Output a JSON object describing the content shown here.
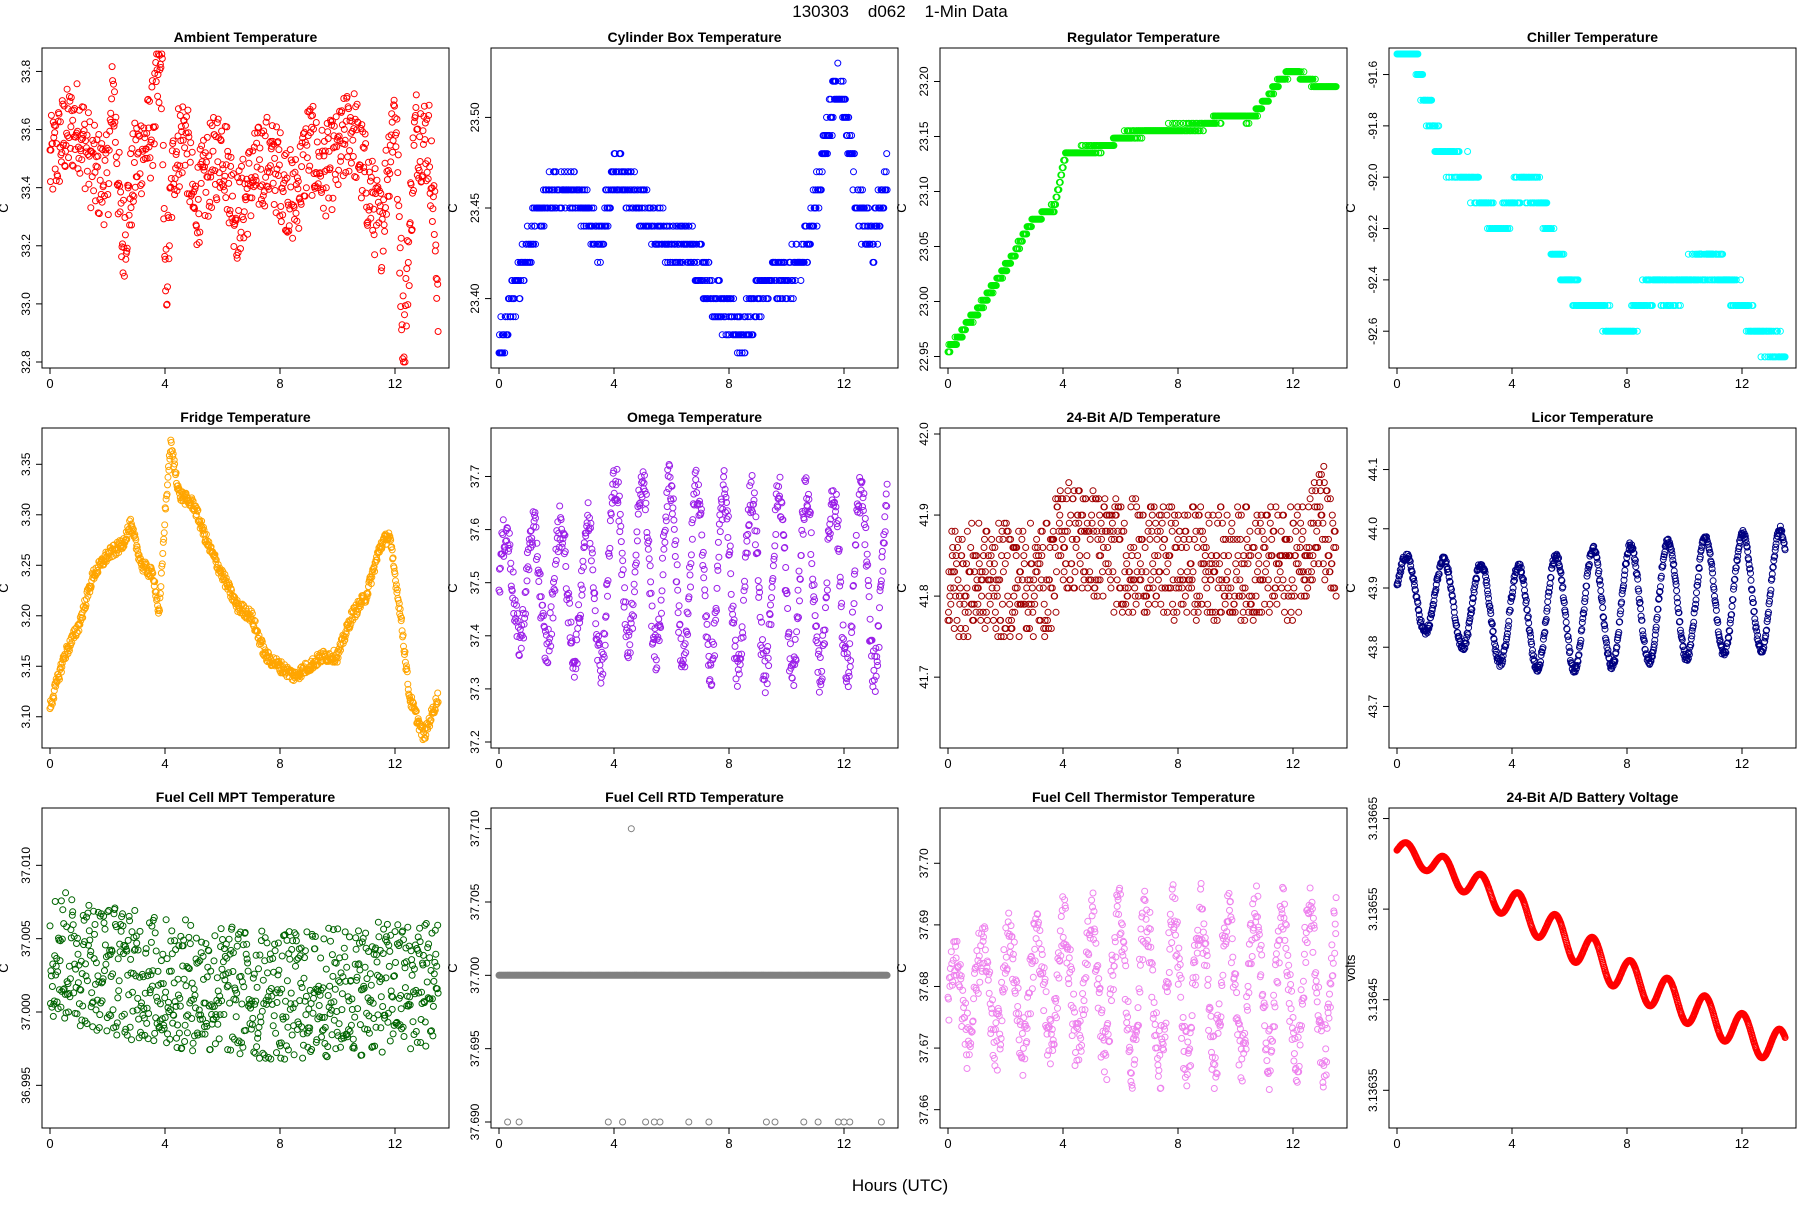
{
  "page": {
    "title": "130303    d062    1-Min Data",
    "xlabel": "Hours (UTC)"
  },
  "chart_data": [
    {
      "type": "scatter",
      "title": "Ambient Temperature",
      "ylabel": "C",
      "color": "#ff0000",
      "xlim": [
        0,
        13.6
      ],
      "xticks": [
        0,
        4,
        8,
        12
      ],
      "ylim": [
        32.8,
        33.86
      ],
      "yticks": [
        "32.8",
        "33.0",
        "33.2",
        "33.4",
        "33.6",
        "33.8"
      ],
      "pattern": "noisy",
      "points": [
        [
          0,
          33.48
        ],
        [
          0.5,
          33.58
        ],
        [
          1,
          33.62
        ],
        [
          1.5,
          33.46
        ],
        [
          2,
          33.42
        ],
        [
          2.2,
          33.75
        ],
        [
          2.5,
          33.2
        ],
        [
          3,
          33.5
        ],
        [
          3.5,
          33.58
        ],
        [
          3.9,
          33.82
        ],
        [
          4,
          33.0
        ],
        [
          4.3,
          33.5
        ],
        [
          4.7,
          33.6
        ],
        [
          5,
          33.32
        ],
        [
          5.5,
          33.45
        ],
        [
          6,
          33.55
        ],
        [
          6.5,
          33.3
        ],
        [
          7,
          33.42
        ],
        [
          7.5,
          33.5
        ],
        [
          8,
          33.45
        ],
        [
          8.5,
          33.35
        ],
        [
          9,
          33.55
        ],
        [
          9.5,
          33.45
        ],
        [
          10,
          33.5
        ],
        [
          10.5,
          33.62
        ],
        [
          11,
          33.42
        ],
        [
          11.5,
          33.25
        ],
        [
          12,
          33.7
        ],
        [
          12.3,
          32.85
        ],
        [
          12.7,
          33.6
        ],
        [
          13.2,
          33.55
        ],
        [
          13.5,
          33.05
        ]
      ],
      "noise": 0.16
    },
    {
      "type": "scatter",
      "title": "Cylinder Box Temperature",
      "ylabel": "C",
      "color": "#0000ff",
      "xlim": [
        0,
        13.6
      ],
      "xticks": [
        0,
        4,
        8,
        12
      ],
      "ylim": [
        23.365,
        23.535
      ],
      "yticks": [
        "23.40",
        "23.45",
        "23.50"
      ],
      "pattern": "steps",
      "step": 0.01,
      "points": [
        [
          0,
          23.37
        ],
        [
          0.5,
          23.4
        ],
        [
          1,
          23.43
        ],
        [
          1.5,
          23.45
        ],
        [
          2,
          23.46
        ],
        [
          2.5,
          23.46
        ],
        [
          3,
          23.45
        ],
        [
          3.5,
          23.43
        ],
        [
          4,
          23.47
        ],
        [
          4.5,
          23.46
        ],
        [
          5,
          23.45
        ],
        [
          5.5,
          23.44
        ],
        [
          6,
          23.43
        ],
        [
          6.5,
          23.43
        ],
        [
          7,
          23.42
        ],
        [
          7.5,
          23.4
        ],
        [
          8,
          23.39
        ],
        [
          8.5,
          23.38
        ],
        [
          9,
          23.4
        ],
        [
          9.5,
          23.41
        ],
        [
          10,
          23.41
        ],
        [
          10.5,
          23.42
        ],
        [
          11,
          23.45
        ],
        [
          11.5,
          23.5
        ],
        [
          11.8,
          23.52
        ],
        [
          12,
          23.51
        ],
        [
          12.5,
          23.45
        ],
        [
          13,
          23.43
        ],
        [
          13.5,
          23.47
        ]
      ],
      "noise": 0.012
    },
    {
      "type": "scatter",
      "title": "Regulator Temperature",
      "ylabel": "C",
      "color": "#00ee00",
      "xlim": [
        0,
        13.6
      ],
      "xticks": [
        0,
        4,
        8,
        12
      ],
      "ylim": [
        22.945,
        23.225
      ],
      "yticks": [
        "22.95",
        "23.00",
        "23.05",
        "23.10",
        "23.15",
        "23.20"
      ],
      "pattern": "steps",
      "step": 0.0067,
      "points": [
        [
          0,
          22.955
        ],
        [
          1,
          22.99
        ],
        [
          2,
          23.03
        ],
        [
          3,
          23.075
        ],
        [
          3.7,
          23.085
        ],
        [
          4.1,
          23.135
        ],
        [
          5.5,
          23.14
        ],
        [
          6,
          23.15
        ],
        [
          7,
          23.155
        ],
        [
          9,
          23.16
        ],
        [
          9.3,
          23.165
        ],
        [
          10,
          23.17
        ],
        [
          10.5,
          23.165
        ],
        [
          11,
          23.18
        ],
        [
          11.5,
          23.2
        ],
        [
          12,
          23.21
        ],
        [
          12.6,
          23.2
        ],
        [
          13,
          23.195
        ],
        [
          13.5,
          23.195
        ]
      ],
      "noise": 0.002
    },
    {
      "type": "scatter",
      "title": "Chiller Temperature",
      "ylabel": "C",
      "color": "#00ffff",
      "xlim": [
        0,
        13.6
      ],
      "xticks": [
        0,
        4,
        8,
        12
      ],
      "ylim": [
        -92.72,
        -91.52
      ],
      "yticks": [
        "-91.6",
        "-91.8",
        "-92.0",
        "-92.2",
        "-92.4",
        "-92.6"
      ],
      "pattern": "steps",
      "step": 0.1,
      "points": [
        [
          0,
          -91.5
        ],
        [
          0.6,
          -91.5
        ],
        [
          0.8,
          -91.6
        ],
        [
          1,
          -91.7
        ],
        [
          1.5,
          -91.9
        ],
        [
          2.5,
          -92.0
        ],
        [
          3,
          -92.1
        ],
        [
          3.5,
          -92.2
        ],
        [
          4,
          -92.1
        ],
        [
          4.5,
          -92.0
        ],
        [
          5,
          -92.1
        ],
        [
          5.5,
          -92.3
        ],
        [
          6,
          -92.4
        ],
        [
          6.5,
          -92.5
        ],
        [
          7,
          -92.5
        ],
        [
          7.5,
          -92.6
        ],
        [
          8,
          -92.6
        ],
        [
          8.5,
          -92.5
        ],
        [
          9,
          -92.4
        ],
        [
          9.5,
          -92.45
        ],
        [
          10,
          -92.4
        ],
        [
          10.5,
          -92.35
        ],
        [
          11,
          -92.35
        ],
        [
          11.5,
          -92.4
        ],
        [
          12,
          -92.5
        ],
        [
          12.5,
          -92.6
        ],
        [
          13,
          -92.65
        ],
        [
          13.5,
          -92.7
        ]
      ],
      "noise": 0.05
    },
    {
      "type": "scatter",
      "title": "Fridge Temperature",
      "ylabel": "C",
      "color": "#ffa500",
      "xlim": [
        0,
        13.6
      ],
      "xticks": [
        0,
        4,
        8,
        12
      ],
      "ylim": [
        3.075,
        3.38
      ],
      "yticks": [
        "3.10",
        "3.15",
        "3.20",
        "3.25",
        "3.30",
        "3.35"
      ],
      "pattern": "smooth",
      "points": [
        [
          0,
          3.11
        ],
        [
          0.5,
          3.16
        ],
        [
          1,
          3.19
        ],
        [
          1.5,
          3.24
        ],
        [
          2,
          3.26
        ],
        [
          2.5,
          3.27
        ],
        [
          2.8,
          3.29
        ],
        [
          3.2,
          3.25
        ],
        [
          3.6,
          3.24
        ],
        [
          3.8,
          3.2
        ],
        [
          4,
          3.3
        ],
        [
          4.2,
          3.37
        ],
        [
          4.5,
          3.32
        ],
        [
          5,
          3.31
        ],
        [
          5.5,
          3.27
        ],
        [
          6,
          3.24
        ],
        [
          6.5,
          3.21
        ],
        [
          7,
          3.2
        ],
        [
          7.5,
          3.16
        ],
        [
          8,
          3.15
        ],
        [
          8.5,
          3.14
        ],
        [
          9,
          3.15
        ],
        [
          9.5,
          3.16
        ],
        [
          10,
          3.16
        ],
        [
          10.5,
          3.2
        ],
        [
          11,
          3.22
        ],
        [
          11.5,
          3.27
        ],
        [
          11.8,
          3.28
        ],
        [
          12.2,
          3.2
        ],
        [
          12.5,
          3.12
        ],
        [
          13,
          3.08
        ],
        [
          13.5,
          3.12
        ]
      ],
      "noise": 0.006
    },
    {
      "type": "scatter",
      "title": "Omega Temperature",
      "ylabel": "C",
      "color": "#9a1ee8",
      "xlim": [
        0,
        13.6
      ],
      "xticks": [
        0,
        4,
        8,
        12
      ],
      "ylim": [
        37.2,
        37.78
      ],
      "yticks": [
        "37.2",
        "37.3",
        "37.4",
        "37.5",
        "37.6",
        "37.7"
      ],
      "pattern": "oscillate",
      "base": 37.5,
      "amp": 0.17,
      "period": 0.95,
      "points": [
        [
          0,
          37.5
        ],
        [
          3.5,
          37.48
        ],
        [
          4,
          37.55
        ],
        [
          8,
          37.5
        ],
        [
          13.5,
          37.5
        ]
      ],
      "noise": 0.04
    },
    {
      "type": "scatter",
      "title": "24-Bit A/D Temperature",
      "ylabel": "C",
      "color": "#a00000",
      "xlim": [
        0,
        13.6
      ],
      "xticks": [
        0,
        4,
        8,
        12
      ],
      "ylim": [
        41.62,
        42.0
      ],
      "yticks": [
        "41.7",
        "41.8",
        "41.9",
        "42.0"
      ],
      "pattern": "noisy",
      "step": 0.01,
      "points": [
        [
          0,
          41.82
        ],
        [
          3.5,
          41.82
        ],
        [
          4,
          41.88
        ],
        [
          6,
          41.85
        ],
        [
          8,
          41.84
        ],
        [
          12,
          41.84
        ],
        [
          13,
          41.9
        ],
        [
          13.5,
          41.82
        ]
      ],
      "noise": 0.07
    },
    {
      "type": "scatter",
      "title": "Licor Temperature",
      "ylabel": "C",
      "color": "#000080",
      "xlim": [
        0,
        13.6
      ],
      "xticks": [
        0,
        4,
        8,
        12
      ],
      "ylim": [
        43.64,
        44.16
      ],
      "yticks": [
        "43.7",
        "43.8",
        "43.9",
        "44.0",
        "44.1"
      ],
      "pattern": "oscillate",
      "base": 43.85,
      "amp": 0.1,
      "period": 1.3,
      "points": [
        [
          0,
          43.9
        ],
        [
          4,
          43.85
        ],
        [
          13.5,
          43.9
        ]
      ],
      "noise": 0.006
    },
    {
      "type": "scatter",
      "title": "Fuel Cell MPT Temperature",
      "ylabel": "C",
      "color": "#006400",
      "xlim": [
        0,
        13.6
      ],
      "xticks": [
        0,
        4,
        8,
        12
      ],
      "ylim": [
        36.9925,
        37.0135
      ],
      "yticks": [
        "36.995",
        "37.000",
        "37.005",
        "37.010"
      ],
      "pattern": "noisy",
      "points": [
        [
          0,
          37.004
        ],
        [
          4,
          37.002
        ],
        [
          8,
          37.001
        ],
        [
          13.5,
          37.002
        ]
      ],
      "noise": 0.0045
    },
    {
      "type": "scatter",
      "title": "Fuel Cell RTD Temperature",
      "ylabel": "C",
      "color": "#808080",
      "xlim": [
        0,
        13.6
      ],
      "xticks": [
        0,
        4,
        8,
        12
      ],
      "ylim": [
        37.69,
        37.711
      ],
      "yticks": [
        "37.690",
        "37.695",
        "37.700",
        "37.705",
        "37.710"
      ],
      "pattern": "flat",
      "points": [
        [
          0,
          37.7
        ],
        [
          13.5,
          37.7
        ]
      ],
      "outliers": [
        [
          0.3,
          37.69
        ],
        [
          0.7,
          37.69
        ],
        [
          3.8,
          37.69
        ],
        [
          4.3,
          37.69
        ],
        [
          4.6,
          37.71
        ],
        [
          5.1,
          37.69
        ],
        [
          5.4,
          37.69
        ],
        [
          5.6,
          37.69
        ],
        [
          6.6,
          37.69
        ],
        [
          7.3,
          37.69
        ],
        [
          9.3,
          37.69
        ],
        [
          9.6,
          37.69
        ],
        [
          10.6,
          37.69
        ],
        [
          11.1,
          37.69
        ],
        [
          11.8,
          37.69
        ],
        [
          12,
          37.69
        ],
        [
          12.2,
          37.69
        ],
        [
          13.3,
          37.69
        ]
      ]
    },
    {
      "type": "scatter",
      "title": "Fuel Cell Thermistor Temperature",
      "ylabel": "C",
      "color": "#ee82ee",
      "xlim": [
        0,
        13.6
      ],
      "xticks": [
        0,
        4,
        8,
        12
      ],
      "ylim": [
        37.658,
        37.708
      ],
      "yticks": [
        "37.66",
        "37.67",
        "37.68",
        "37.69",
        "37.70"
      ],
      "pattern": "oscillate",
      "base": 37.68,
      "amp": 0.012,
      "period": 0.95,
      "points": [
        [
          0,
          37.678
        ],
        [
          4,
          37.68
        ],
        [
          13.5,
          37.68
        ]
      ],
      "noise": 0.005
    },
    {
      "type": "scatter",
      "title": "24-Bit A/D Battery Voltage",
      "ylabel": "volts",
      "color": "#ff0000",
      "xlim": [
        0,
        13.6
      ],
      "xticks": [
        0,
        4,
        8,
        12
      ],
      "ylim": [
        3.136315,
        3.136655
      ],
      "yticks": [
        "3.13635",
        "3.13645",
        "3.13655",
        "3.13665"
      ],
      "pattern": "oscillate",
      "base": 0,
      "amp": 2e-05,
      "period": 1.3,
      "points": [
        [
          0,
          3.136615
        ],
        [
          1,
          3.136605
        ],
        [
          4,
          3.136555
        ],
        [
          8,
          3.136475
        ],
        [
          12,
          3.136415
        ],
        [
          13.5,
          3.136395
        ]
      ],
      "noise": 0
    }
  ]
}
